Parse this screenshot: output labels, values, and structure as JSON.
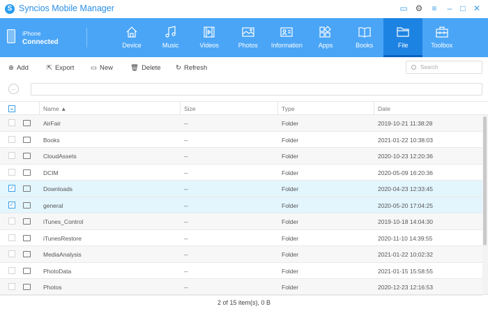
{
  "app": {
    "title": "Syncios Mobile Manager",
    "logo_letter": "S"
  },
  "window_controls": [
    "feedback-icon",
    "gear-icon",
    "menu-icon",
    "minimize-icon",
    "maximize-icon",
    "close-icon"
  ],
  "device": {
    "name": "iPhone",
    "status": "Connected"
  },
  "nav": [
    {
      "label": "Device",
      "icon": "home-icon"
    },
    {
      "label": "Music",
      "icon": "music-icon"
    },
    {
      "label": "Videos",
      "icon": "video-icon"
    },
    {
      "label": "Photos",
      "icon": "photo-icon"
    },
    {
      "label": "Information",
      "icon": "contact-card-icon"
    },
    {
      "label": "Apps",
      "icon": "apps-icon"
    },
    {
      "label": "Books",
      "icon": "book-icon"
    },
    {
      "label": "File",
      "icon": "folder-icon",
      "active": true
    },
    {
      "label": "Toolbox",
      "icon": "toolbox-icon"
    }
  ],
  "toolbar": {
    "add": "Add",
    "export": "Export",
    "new": "New",
    "delete": "Delete",
    "refresh": "Refresh",
    "search_placeholder": "Search"
  },
  "table": {
    "headers": {
      "name": "Name ▲",
      "size": "Size",
      "type": "Type",
      "date": "Date"
    },
    "rows": [
      {
        "name": "AirFair",
        "size": "--",
        "type": "Folder",
        "date": "2019-10-21 11:38:28",
        "checked": false
      },
      {
        "name": "Books",
        "size": "--",
        "type": "Folder",
        "date": "2021-01-22 10:38:03",
        "checked": false
      },
      {
        "name": "CloudAssets",
        "size": "--",
        "type": "Folder",
        "date": "2020-10-23 12:20:36",
        "checked": false
      },
      {
        "name": "DCIM",
        "size": "--",
        "type": "Folder",
        "date": "2020-05-09 16:20:36",
        "checked": false
      },
      {
        "name": "Downloads",
        "size": "--",
        "type": "Folder",
        "date": "2020-04-23 12:33:45",
        "checked": true
      },
      {
        "name": "general",
        "size": "--",
        "type": "Folder",
        "date": "2020-05-20 17:04:25",
        "checked": true
      },
      {
        "name": "iTunes_Control",
        "size": "--",
        "type": "Folder",
        "date": "2019-10-18 14:04:30",
        "checked": false
      },
      {
        "name": "iTunesRestore",
        "size": "--",
        "type": "Folder",
        "date": "2020-11-10 14:39:55",
        "checked": false
      },
      {
        "name": "MediaAnalysis",
        "size": "--",
        "type": "Folder",
        "date": "2021-01-22 10:02:32",
        "checked": false
      },
      {
        "name": "PhotoData",
        "size": "--",
        "type": "Folder",
        "date": "2021-01-15 15:58:55",
        "checked": false
      },
      {
        "name": "Photos",
        "size": "--",
        "type": "Folder",
        "date": "2020-12-23 12:16:53",
        "checked": false
      }
    ]
  },
  "footer": {
    "status": "2 of 15 item(s), 0 B"
  },
  "colors": {
    "accent": "#4aa5f6",
    "active_tab": "#1d83e3",
    "selected_row": "#e3f5fd"
  }
}
